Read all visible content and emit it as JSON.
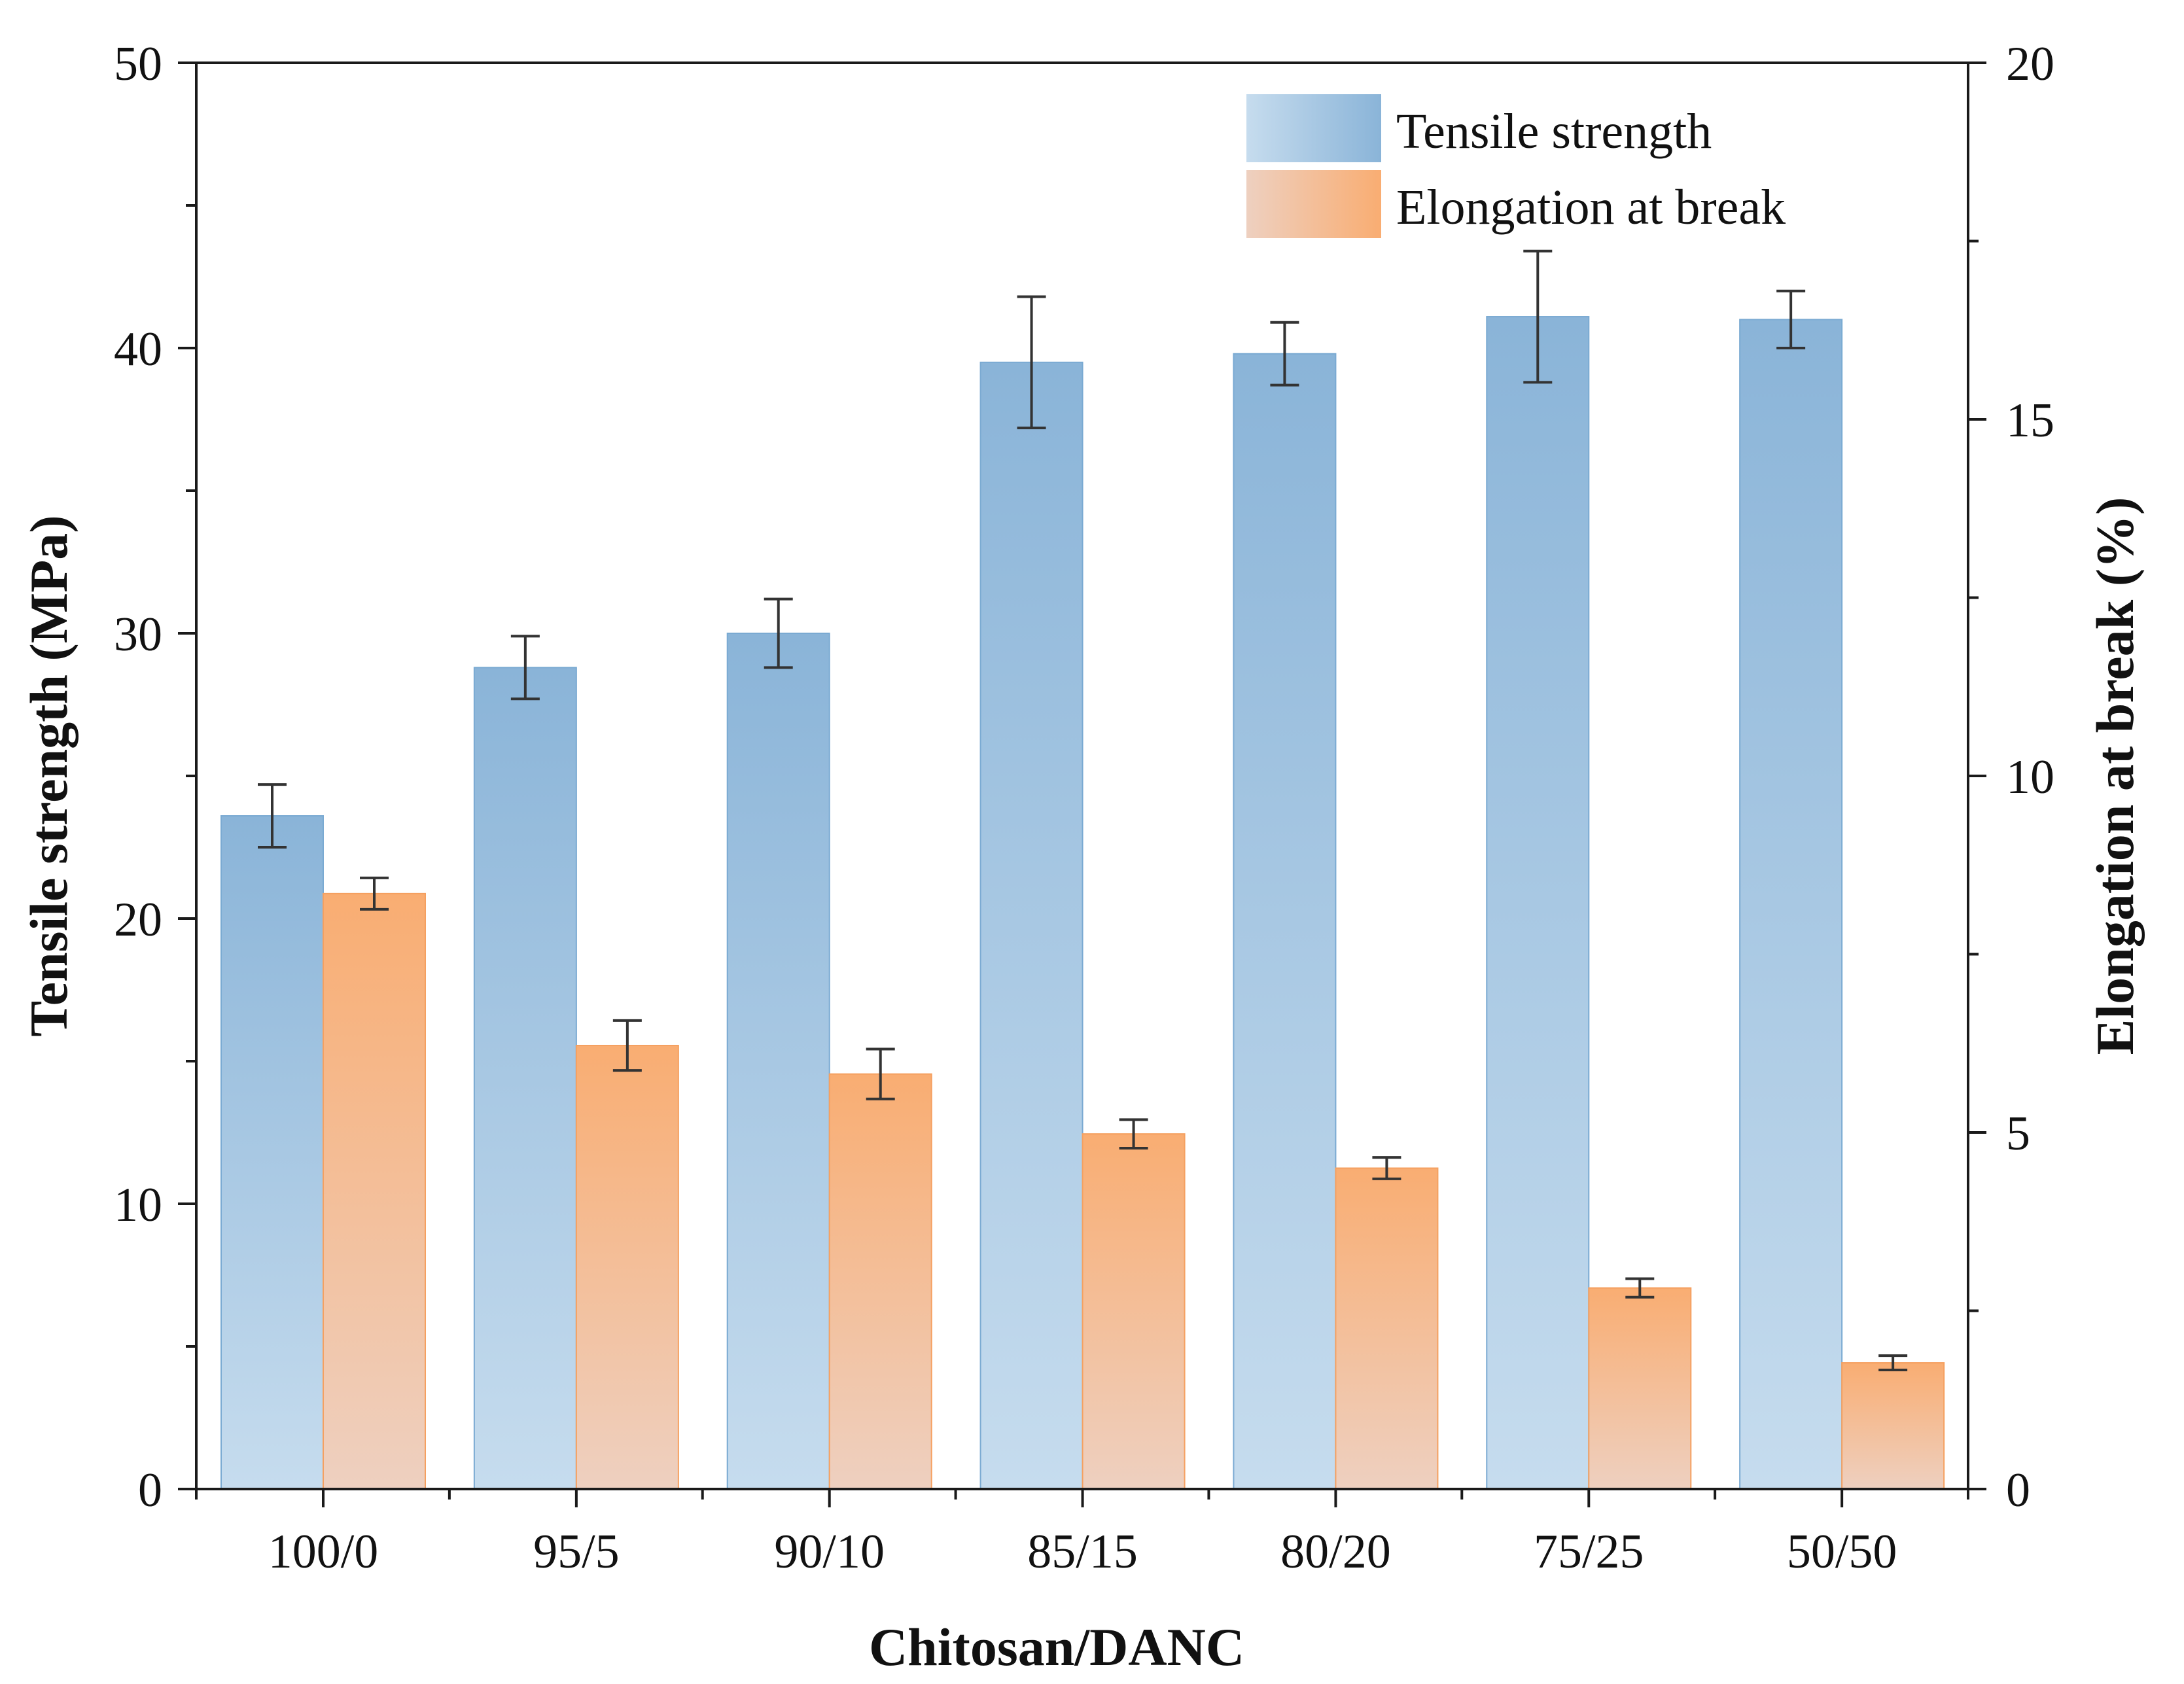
{
  "chart_data": {
    "type": "bar",
    "title": "",
    "xlabel": "Chitosan/DANC",
    "ylabel": "Tensile strength (MPa)",
    "y2label": "Elongation at break (%)",
    "categories": [
      "100/0",
      "95/5",
      "90/10",
      "85/15",
      "80/20",
      "75/25",
      "50/50"
    ],
    "ylim": [
      0,
      50
    ],
    "y2lim": [
      0,
      20
    ],
    "y_ticks": [
      0,
      10,
      20,
      30,
      40,
      50
    ],
    "y2_ticks": [
      0,
      5,
      10,
      15,
      20
    ],
    "y_tick_labels": [
      "0",
      "10",
      "20",
      "30",
      "40",
      "50"
    ],
    "y2_tick_labels": [
      "0",
      "5",
      "10",
      "15",
      "20"
    ],
    "grid": false,
    "legend_position": "top-right",
    "series": [
      {
        "name": "Tensile strength",
        "axis": "left",
        "color_top": "#8ab4d8",
        "color_bottom": "#c6dcee",
        "values": [
          23.6,
          28.8,
          30.0,
          39.5,
          39.8,
          41.1,
          41.0
        ],
        "errors": [
          1.1,
          1.1,
          1.2,
          2.3,
          1.1,
          2.3,
          1.0
        ]
      },
      {
        "name": "Elongation at break",
        "axis": "right",
        "color_top": "#f9ad72",
        "color_bottom": "#eed0c0",
        "values": [
          8.35,
          6.22,
          5.82,
          4.98,
          4.5,
          2.82,
          1.77
        ],
        "errors": [
          0.22,
          0.35,
          0.35,
          0.2,
          0.15,
          0.13,
          0.1
        ]
      }
    ]
  }
}
